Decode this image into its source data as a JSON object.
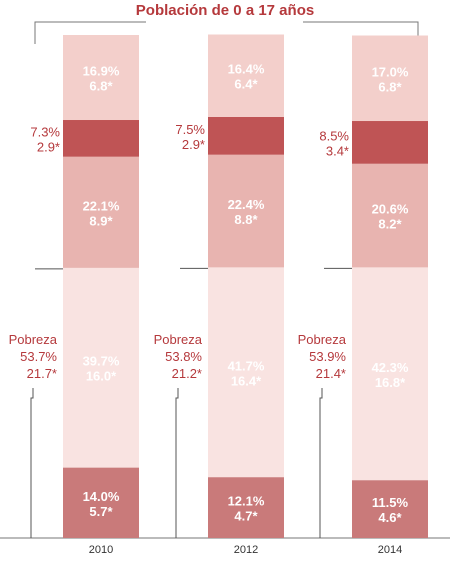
{
  "chart_data": {
    "type": "bar",
    "title": "Población de 0 a 17 años",
    "categories": [
      "2010",
      "2012",
      "2014"
    ],
    "series": [
      {
        "values": [
          14.0,
          12.1,
          11.5
        ],
        "labels": [
          "14.0%",
          "12.1%",
          "11.5%"
        ],
        "sublabels": [
          "5.7*",
          "4.7*",
          "4.6*"
        ],
        "color": "#c97a7a",
        "text_color": "#ffffff"
      },
      {
        "values": [
          39.7,
          41.7,
          42.3
        ],
        "labels": [
          "39.7%",
          "41.7%",
          "42.3%"
        ],
        "sublabels": [
          "16.0*",
          "16.4*",
          "16.8*"
        ],
        "color": "#f9e3e1",
        "text_color": "#ffffff"
      },
      {
        "values": [
          22.1,
          22.4,
          20.6
        ],
        "labels": [
          "22.1%",
          "22.4%",
          "20.6%"
        ],
        "sublabels": [
          "8.9*",
          "8.8*",
          "8.2*"
        ],
        "color": "#e8b4b0",
        "text_color": "#ffffff"
      },
      {
        "values": [
          7.3,
          7.5,
          8.5
        ],
        "labels": [
          "7.3%",
          "7.5%",
          "8.5%"
        ],
        "sublabels": [
          "2.9*",
          "2.9*",
          "3.4*"
        ],
        "color": "#bf5455",
        "text_color": "#b5393c"
      },
      {
        "values": [
          16.9,
          16.4,
          17.0
        ],
        "labels": [
          "16.9%",
          "16.4%",
          "17.0%"
        ],
        "sublabels": [
          "6.8*",
          "6.4*",
          "6.8*"
        ],
        "color": "#f3cfcb",
        "text_color": "#ffffff"
      }
    ],
    "pobreza": {
      "label": "Pobreza",
      "values": [
        "53.7%",
        "53.8%",
        "53.9%"
      ],
      "sublabels": [
        "21.7*",
        "21.2*",
        "21.4*"
      ]
    },
    "colors": {
      "accent": "#b5393c",
      "axis": "#777777"
    }
  }
}
